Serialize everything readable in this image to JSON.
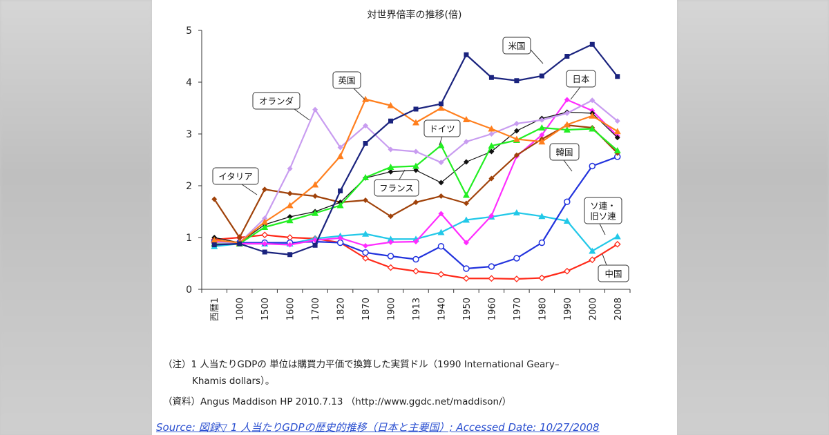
{
  "chart_data": {
    "type": "line",
    "title": "対世界倍率の推移(倍)",
    "categories": [
      "西暦1",
      "1000",
      "1500",
      "1600",
      "1700",
      "1820",
      "1870",
      "1900",
      "1913",
      "1940",
      "1950",
      "1960",
      "1970",
      "1980",
      "1990",
      "2000",
      "2008"
    ],
    "ylim": [
      0,
      5
    ],
    "yticks": [
      "0",
      "1",
      "2",
      "3",
      "4",
      "5"
    ],
    "series": [
      {
        "name": "米国",
        "color": "#1a237e",
        "marker": "square",
        "values": [
          0.86,
          0.88,
          0.72,
          0.67,
          0.85,
          1.9,
          2.82,
          3.25,
          3.48,
          3.58,
          4.53,
          4.09,
          4.03,
          4.12,
          4.5,
          4.73,
          4.11
        ]
      },
      {
        "name": "英国",
        "color": "#ff7f1e",
        "marker": "triangle",
        "values": [
          0.95,
          0.9,
          1.3,
          1.62,
          2.02,
          2.57,
          3.67,
          3.55,
          3.22,
          3.5,
          3.28,
          3.1,
          2.9,
          2.85,
          3.18,
          3.35,
          3.05
        ]
      },
      {
        "name": "オランダ",
        "color": "#c89cf0",
        "marker": "diamond",
        "values": [
          0.9,
          0.9,
          1.37,
          2.33,
          3.47,
          2.74,
          3.16,
          2.7,
          2.66,
          2.45,
          2.85,
          3.0,
          3.2,
          3.27,
          3.4,
          3.65,
          3.25
        ]
      },
      {
        "name": "ドイツ",
        "color": "#22ee22",
        "marker": "triangle",
        "values": [
          0.88,
          0.88,
          1.2,
          1.33,
          1.47,
          1.62,
          2.16,
          2.36,
          2.38,
          2.78,
          1.82,
          2.77,
          2.88,
          3.12,
          3.08,
          3.1,
          2.68
        ]
      },
      {
        "name": "フランス",
        "color": "#111111",
        "marker": "diamond",
        "values": [
          1.0,
          0.9,
          1.25,
          1.4,
          1.5,
          1.68,
          2.15,
          2.27,
          2.3,
          2.06,
          2.46,
          2.66,
          3.06,
          3.3,
          3.42,
          3.4,
          2.93
        ]
      },
      {
        "name": "イタリア",
        "color": "#a0420a",
        "marker": "diamond",
        "values": [
          1.74,
          1.0,
          1.93,
          1.85,
          1.8,
          1.68,
          1.72,
          1.41,
          1.68,
          1.8,
          1.66,
          2.14,
          2.59,
          2.9,
          3.17,
          3.12,
          2.63
        ]
      },
      {
        "name": "日本",
        "color": "#ff2cff",
        "marker": "diamond",
        "values": [
          0.92,
          0.88,
          0.88,
          0.86,
          0.95,
          0.99,
          0.84,
          0.91,
          0.92,
          1.46,
          0.9,
          1.42,
          2.57,
          2.98,
          3.66,
          3.45,
          2.96
        ]
      },
      {
        "name": "韓国",
        "color": "#2233dd",
        "marker": "circle",
        "values": [
          0.92,
          0.9,
          0.9,
          0.9,
          0.92,
          0.9,
          0.71,
          0.64,
          0.58,
          0.83,
          0.4,
          0.44,
          0.6,
          0.9,
          1.69,
          2.38,
          2.56
        ]
      },
      {
        "name": "ソ連・旧ソ連",
        "color": "#22c8e8",
        "marker": "triangle",
        "values": [
          0.83,
          0.88,
          0.88,
          0.88,
          0.98,
          1.03,
          1.07,
          0.97,
          0.97,
          1.1,
          1.34,
          1.4,
          1.48,
          1.41,
          1.32,
          0.74,
          1.02
        ]
      },
      {
        "name": "中国",
        "color": "#ff2a1a",
        "marker": "diamond-open",
        "values": [
          0.96,
          1.0,
          1.05,
          1.0,
          0.98,
          0.9,
          0.6,
          0.42,
          0.35,
          0.29,
          0.21,
          0.21,
          0.2,
          0.22,
          0.35,
          0.57,
          0.87
        ]
      }
    ],
    "annotations": [
      {
        "text": "米国",
        "series": "米国"
      },
      {
        "text": "英国",
        "series": "英国"
      },
      {
        "text": "オランダ",
        "series": "オランダ"
      },
      {
        "text": "ドイツ",
        "series": "ドイツ"
      },
      {
        "text": "フランス",
        "series": "フランス"
      },
      {
        "text": "イタリア",
        "series": "イタリア"
      },
      {
        "text": "日本",
        "series": "日本"
      },
      {
        "text": "韓国",
        "series": "韓国"
      },
      {
        "text": "ソ連・\n旧ソ連",
        "series": "ソ連・旧ソ連"
      },
      {
        "text": "中国",
        "series": "中国"
      }
    ]
  },
  "notes": {
    "line1": "（注）1 人当たりGDPの 単位は購買力平価で換算した実質ドル（1990 International Geary–",
    "line2": "Khamis dollars）。",
    "line3": "（資料）Angus Maddison HP 2010.7.13 （http://www.ggdc.net/maddison/）"
  },
  "source": "Source: 図録▽ 1 人当たりGDPの歴史的推移（日本と主要国）; Accessed Date: 10/27/2008"
}
